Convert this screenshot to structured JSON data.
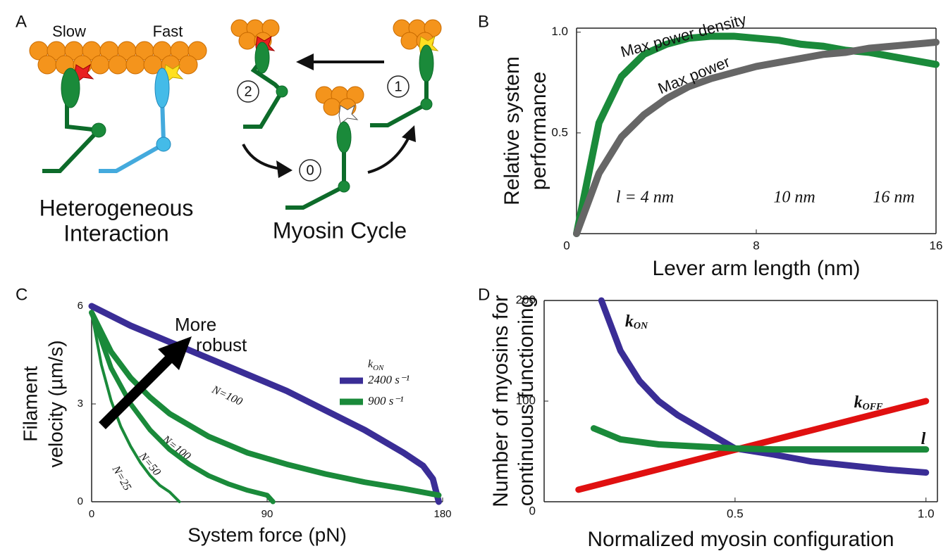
{
  "panel_labels": [
    "A",
    "B",
    "C",
    "D"
  ],
  "diagram": {
    "slow": "Slow",
    "fast": "Fast",
    "interaction": [
      "Heterogeneous",
      "Interaction"
    ],
    "cycle": "Myosin Cycle",
    "states": [
      "2",
      "1",
      "0"
    ]
  },
  "chart_data": [
    {
      "type": "line",
      "xlabel": "Lever arm length (nm)",
      "ylabel": [
        "Relative system",
        "performance"
      ],
      "x": [
        0,
        1,
        2,
        3,
        4,
        5,
        6,
        7,
        8,
        9,
        10,
        11,
        12,
        13,
        14,
        15,
        16
      ],
      "series": [
        {
          "name": "Max power density",
          "color": "#1a8a3a",
          "values": [
            0,
            0.55,
            0.78,
            0.89,
            0.94,
            0.97,
            0.98,
            0.98,
            0.97,
            0.96,
            0.94,
            0.93,
            0.91,
            0.9,
            0.88,
            0.86,
            0.84
          ]
        },
        {
          "name": "Max power",
          "color": "#666666",
          "values": [
            0,
            0.3,
            0.48,
            0.59,
            0.67,
            0.73,
            0.77,
            0.8,
            0.83,
            0.85,
            0.87,
            0.89,
            0.9,
            0.92,
            0.93,
            0.94,
            0.95
          ]
        }
      ],
      "xlim": [
        0,
        16
      ],
      "ylim": [
        0,
        1.02
      ],
      "xticks": [
        0,
        8,
        16
      ],
      "yticks": [
        0.5,
        {
          "value": 1,
          "label": "1.0"
        }
      ],
      "insets": [
        "l =  4 nm",
        "10 nm",
        "16 nm"
      ]
    },
    {
      "type": "line",
      "xlabel": "System force (pN)",
      "ylabel": [
        "Filament",
        "velocity (µm/s)"
      ],
      "series": [
        {
          "name": "N=100",
          "color": "#3a2d96",
          "x": [
            0,
            20,
            40,
            60,
            80,
            100,
            120,
            140,
            160,
            170,
            175,
            178
          ],
          "values": [
            6,
            5.4,
            4.9,
            4.4,
            3.9,
            3.4,
            2.8,
            2.2,
            1.5,
            1.1,
            0.7,
            0
          ]
        },
        {
          "name": "N=100",
          "color": "#1a8a3a",
          "x": [
            0,
            10,
            20,
            30,
            40,
            60,
            80,
            100,
            120,
            140,
            160,
            178
          ],
          "values": [
            5.8,
            4.6,
            3.8,
            3.2,
            2.7,
            2,
            1.5,
            1.15,
            0.85,
            0.6,
            0.4,
            0.2
          ]
        },
        {
          "name": "N=50",
          "color": "#1a8a3a",
          "x": [
            0,
            10,
            20,
            30,
            40,
            50,
            60,
            70,
            80,
            90,
            93
          ],
          "values": [
            5.8,
            4.1,
            3,
            2.2,
            1.6,
            1.15,
            0.8,
            0.55,
            0.35,
            0.2,
            0
          ]
        },
        {
          "name": "N=25",
          "color": "#1a8a3a",
          "x": [
            0,
            5,
            10,
            15,
            20,
            25,
            30,
            35,
            40,
            45
          ],
          "values": [
            5.8,
            4.2,
            3.1,
            2.3,
            1.7,
            1.2,
            0.8,
            0.5,
            0.3,
            0
          ]
        }
      ],
      "legend": {
        "title": "k",
        "title_subscript": "ON",
        "entries": [
          {
            "label": "2400 s⁻¹",
            "color": "#3a2d96"
          },
          {
            "label": "900 s⁻¹",
            "color": "#1a8a3a"
          }
        ]
      },
      "annotation": [
        "More",
        "robust"
      ],
      "xlim": [
        0,
        180
      ],
      "ylim": [
        0,
        6
      ],
      "xticks": [
        0,
        90,
        180
      ],
      "yticks": [
        0,
        3,
        6
      ]
    },
    {
      "type": "line",
      "xlabel": "Normalized myosin configuration",
      "ylabel": [
        "Number of myosins for",
        "continuous functioning"
      ],
      "series": [
        {
          "name": "k",
          "subscript": "ON",
          "color": "#3a2d96",
          "x": [
            0.15,
            0.2,
            0.25,
            0.3,
            0.35,
            0.4,
            0.5,
            0.6,
            0.7,
            0.8,
            0.9,
            1
          ],
          "values": [
            200,
            150,
            120,
            100,
            86,
            75,
            53,
            47,
            40,
            36,
            32,
            29
          ]
        },
        {
          "name": "k",
          "subscript": "OFF",
          "color": "#e01010",
          "x": [
            0.09,
            1
          ],
          "values": [
            12,
            100
          ]
        },
        {
          "name": "l",
          "color": "#1a8a3a",
          "x": [
            0.13,
            0.2,
            0.3,
            0.4,
            0.5,
            0.6,
            0.8,
            1
          ],
          "values": [
            73,
            62,
            57,
            55,
            53,
            52,
            52,
            52
          ]
        }
      ],
      "xlim": [
        0,
        1.03
      ],
      "ylim": [
        0,
        200
      ],
      "xticks": [
        0.5,
        {
          "value": 1,
          "label": "1.0"
        }
      ],
      "yticks": [
        0,
        100,
        200
      ]
    }
  ]
}
